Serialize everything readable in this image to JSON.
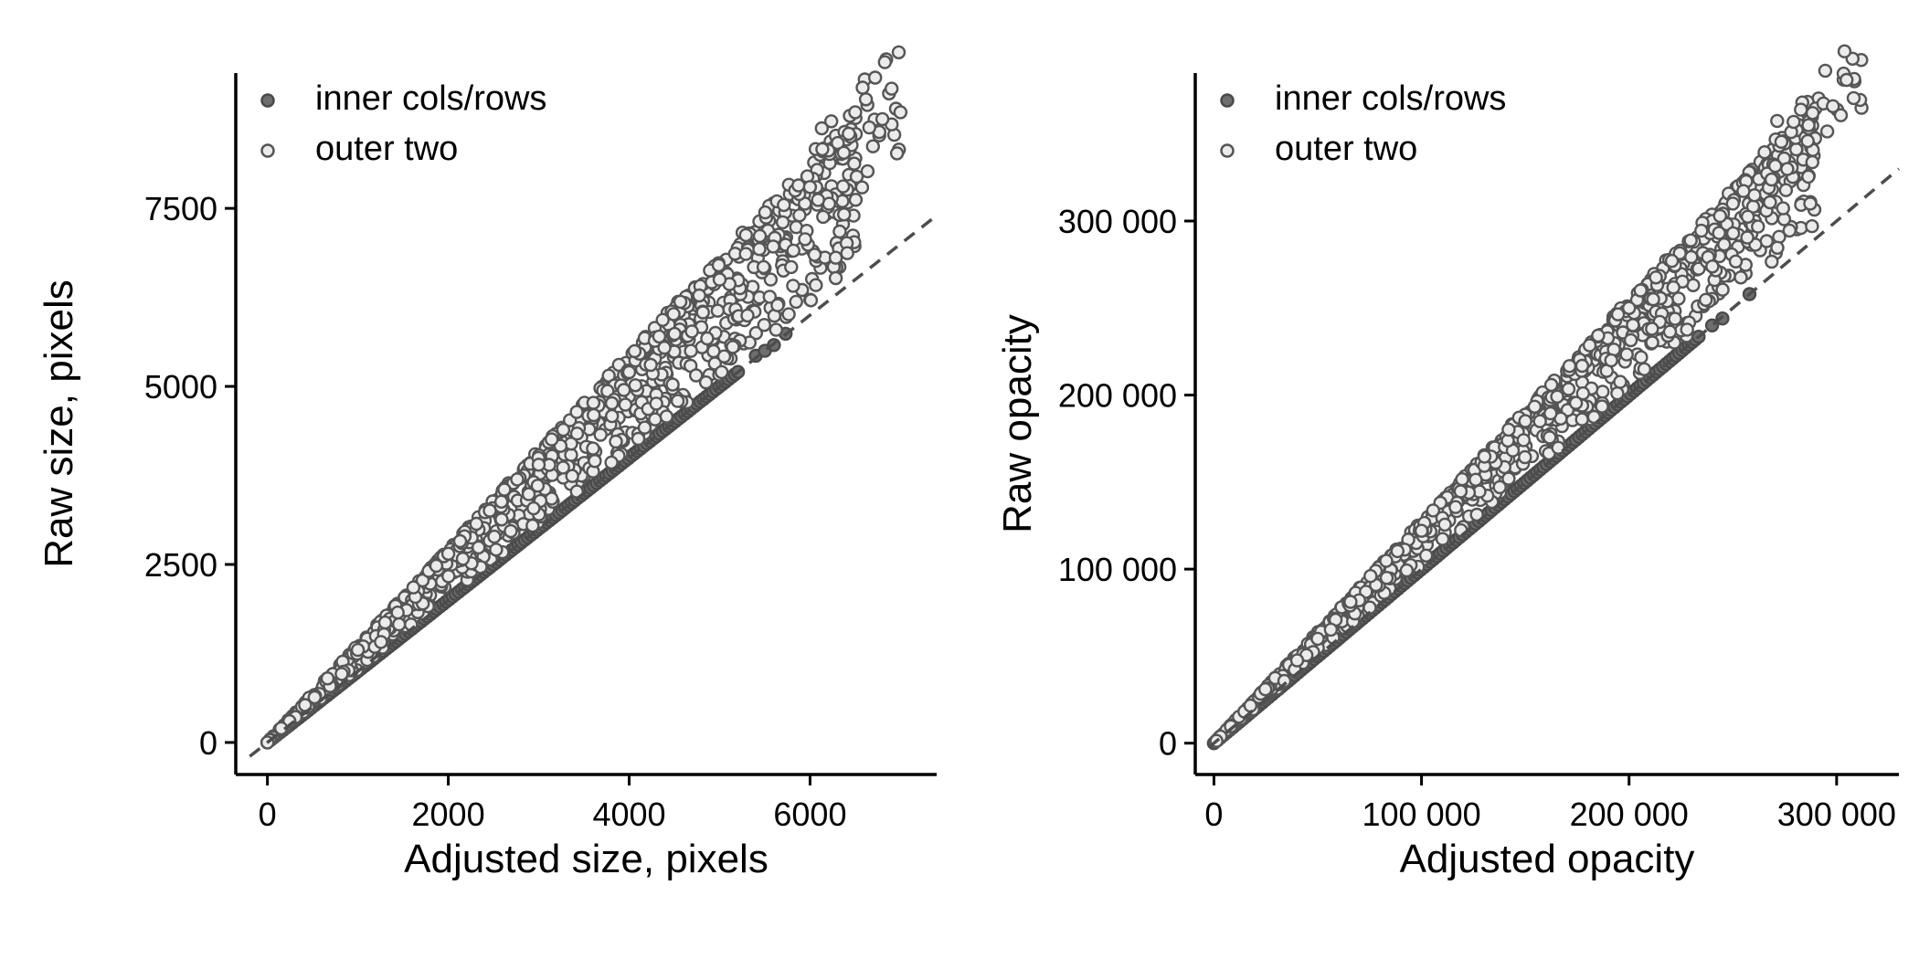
{
  "colors": {
    "inner_fill": "#6e6e6e",
    "inner_stroke": "#4a4a4a",
    "outer_fill": "#ebebeb",
    "outer_stroke": "#555555",
    "reference_line": "#4d4d4d"
  },
  "chart_data": [
    {
      "type": "scatter",
      "xlabel": "Adjusted size, pixels",
      "ylabel": "Raw size, pixels",
      "xlim": [
        -350,
        7400
      ],
      "ylim": [
        -450,
        9400
      ],
      "xticks": [
        0,
        2000,
        4000,
        6000
      ],
      "xtick_labels": [
        "0",
        "2000",
        "4000",
        "6000"
      ],
      "yticks": [
        0,
        2500,
        5000,
        7500
      ],
      "ytick_labels": [
        "0",
        "2500",
        "5000",
        "7500"
      ],
      "grid": false,
      "legend_position": "top-left",
      "reference_line": {
        "style": "dashed",
        "slope": 1,
        "intercept": 0
      },
      "series": [
        {
          "name": "inner cols/rows",
          "marker": "filled dark grey circle",
          "trend": "y = x (points lie on the dashed identity line)",
          "x_range": [
            0,
            5750
          ],
          "sample_points": [
            [
              0,
              0
            ],
            [
              1000,
              1000
            ],
            [
              2000,
              2000
            ],
            [
              3000,
              3000
            ],
            [
              4000,
              4000
            ],
            [
              5000,
              5000
            ],
            [
              5150,
              5150
            ],
            [
              5400,
              5430
            ],
            [
              5500,
              5500
            ],
            [
              5600,
              5580
            ],
            [
              5730,
              5740
            ]
          ]
        },
        {
          "name": "outer two",
          "marker": "light grey circle with dark outline",
          "trend": "fan between y = 1.03x and y = 1.36x",
          "x_range": [
            0,
            7000
          ],
          "slope_range": [
            1.03,
            1.36
          ],
          "sample_points": [
            [
              1000,
              1300
            ],
            [
              2000,
              2650
            ],
            [
              3000,
              3900
            ],
            [
              4000,
              5200
            ],
            [
              5000,
              6500
            ],
            [
              6000,
              7800
            ],
            [
              6500,
              8850
            ],
            [
              6950,
              8900
            ],
            [
              7000,
              8850
            ]
          ]
        }
      ]
    },
    {
      "type": "scatter",
      "xlabel": "Adjusted opacity",
      "ylabel": "Raw opacity",
      "xlim": [
        -9000,
        330000
      ],
      "ylim": [
        -18000,
        385000
      ],
      "xticks": [
        0,
        100000,
        200000,
        300000
      ],
      "xtick_labels": [
        "0",
        "100 000",
        "200 000",
        "300 000"
      ],
      "yticks": [
        0,
        100000,
        200000,
        300000
      ],
      "ytick_labels": [
        "0",
        "100 000",
        "200 000",
        "300 000"
      ],
      "grid": false,
      "legend_position": "top-left",
      "reference_line": {
        "style": "dashed",
        "slope": 1,
        "intercept": 0
      },
      "series": [
        {
          "name": "inner cols/rows",
          "marker": "filled dark grey circle",
          "trend": "y = x (points lie on the dashed identity line)",
          "x_range": [
            0,
            258000
          ],
          "sample_points": [
            [
              0,
              0
            ],
            [
              50000,
              50000
            ],
            [
              100000,
              100000
            ],
            [
              150000,
              150000
            ],
            [
              200000,
              200000
            ],
            [
              240000,
              240000
            ],
            [
              245000,
              244000
            ],
            [
              258000,
              258000
            ]
          ]
        },
        {
          "name": "outer two",
          "marker": "light grey circle with dark outline",
          "trend": "fan between y = 1.03x and y = 1.27x",
          "x_range": [
            0,
            312000
          ],
          "slope_range": [
            1.03,
            1.27
          ],
          "sample_points": [
            [
              50000,
              60000
            ],
            [
              100000,
              122000
            ],
            [
              150000,
              185000
            ],
            [
              200000,
              250000
            ],
            [
              250000,
              310000
            ],
            [
              285000,
              348000
            ],
            [
              312000,
              365000
            ]
          ]
        }
      ]
    }
  ]
}
